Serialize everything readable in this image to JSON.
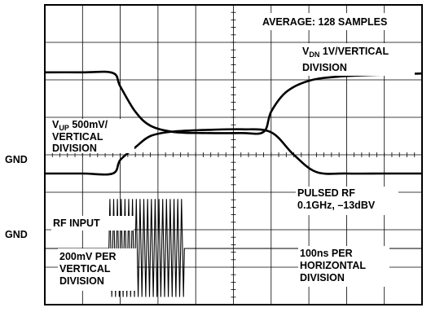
{
  "chart_data": {
    "type": "line",
    "title": "",
    "grid": {
      "on": true,
      "divisions_x": 10,
      "divisions_y": 8
    },
    "x": {
      "unit": "ns",
      "per_division": 100,
      "range": [
        0,
        1000
      ]
    },
    "annotations": {
      "average": "AVERAGE: 128 SAMPLES",
      "vdn_label_main": "V",
      "vdn_label_sub": "DN",
      "vdn_label_rest": " 1V/VERTICAL",
      "vdn_label_line2": "DIVISION",
      "vup_label_main": "V",
      "vup_label_sub": "UP",
      "vup_label_rest": " 500mV/",
      "vup_label_line2": "VERTICAL",
      "vup_label_line3": "DIVISION",
      "gnd_upper": "GND",
      "gnd_lower": "GND",
      "pulsed_rf_line1": "PULSED RF",
      "pulsed_rf_line2": "0.1GHz, –13dBV",
      "rf_input": "RF INPUT",
      "rf_scale_line1": "200mV PER",
      "rf_scale_line2": "VERTICAL",
      "rf_scale_line3": "DIVISION",
      "time_scale_line1": "100ns PER",
      "time_scale_line2": "HORIZONTAL",
      "time_scale_line3": "DIVISION"
    },
    "series": [
      {
        "name": "VUP",
        "scale": "500mV/div",
        "x": [
          0,
          100,
          180,
          200,
          240,
          280,
          340,
          420,
          520,
          600,
          660,
          720,
          800,
          900,
          1000
        ],
        "y": [
          0,
          0,
          0,
          0.18,
          0.35,
          0.5,
          0.56,
          0.58,
          0.59,
          0.55,
          0.25,
          0.02,
          0,
          0,
          0
        ]
      },
      {
        "name": "VDN",
        "scale": "1V/div",
        "x": [
          0,
          100,
          180,
          200,
          240,
          280,
          340,
          420,
          520,
          580,
          600,
          640,
          700,
          780,
          900,
          1000
        ],
        "y": [
          3.6,
          3.6,
          3.58,
          3.1,
          2.2,
          1.7,
          1.48,
          1.44,
          1.44,
          1.48,
          2.2,
          2.9,
          3.3,
          3.45,
          3.52,
          3.56
        ]
      },
      {
        "name": "RF INPUT",
        "scale": "200mV/div",
        "frequency_ghz": 0.1,
        "amplitude_dbv": -13,
        "burst_ns": [
          170,
          370
        ],
        "baseline": 0
      }
    ]
  }
}
